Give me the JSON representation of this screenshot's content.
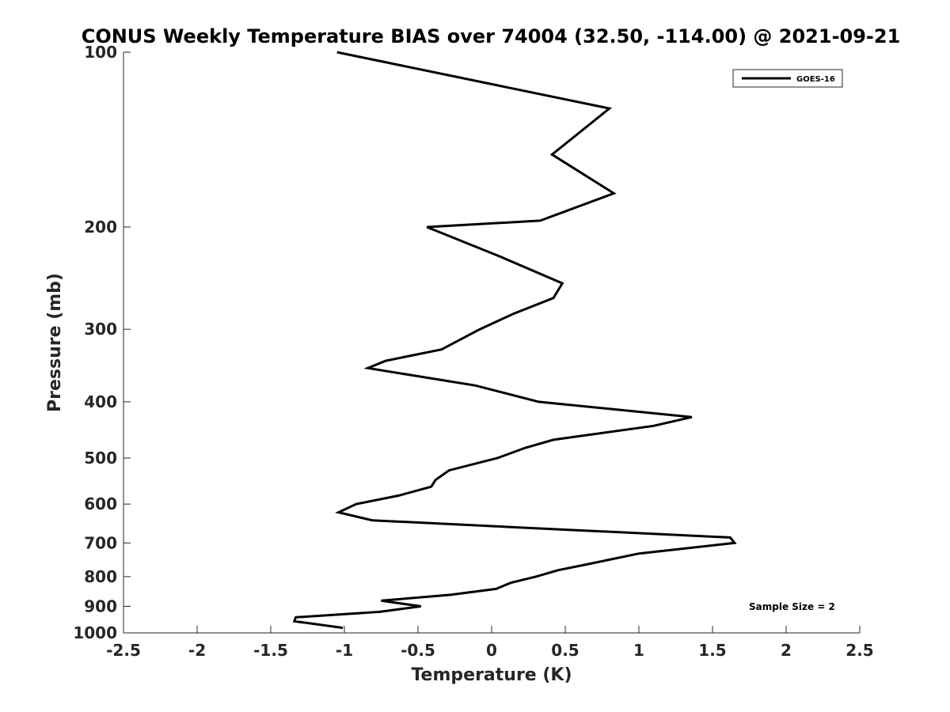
{
  "chart_data": {
    "type": "line",
    "title": "CONUS Weekly Temperature BIAS over 74004 (32.50, -114.00) @ 2021-09-21",
    "xlabel": "Temperature (K)",
    "ylabel": "Pressure (mb)",
    "xlim": [
      -2.5,
      2.5
    ],
    "ylim": [
      100,
      1000
    ],
    "y_scale": "log",
    "y_reversed": true,
    "grid": false,
    "x_ticks": [
      -2.5,
      -2,
      -1.5,
      -1,
      -0.5,
      0,
      0.5,
      1,
      1.5,
      2,
      2.5
    ],
    "x_tick_labels": [
      "-2.5",
      "-2",
      "-1.5",
      "-1",
      "-0.5",
      "0",
      "0.5",
      "1",
      "1.5",
      "2",
      "2.5"
    ],
    "y_ticks": [
      100,
      200,
      300,
      400,
      500,
      600,
      700,
      800,
      900,
      1000
    ],
    "y_tick_labels": [
      "100",
      "200",
      "300",
      "400",
      "500",
      "600",
      "700",
      "800",
      "900",
      "1000"
    ],
    "legend_position": "top-right",
    "annotation": "Sample Size = 2",
    "series": [
      {
        "name": "GOES-16",
        "color": "#000000",
        "points": [
          {
            "x": -1.05,
            "p": 100
          },
          {
            "x": 0.8,
            "p": 125
          },
          {
            "x": 0.41,
            "p": 150
          },
          {
            "x": 0.83,
            "p": 175
          },
          {
            "x": 0.33,
            "p": 195
          },
          {
            "x": -0.44,
            "p": 200
          },
          {
            "x": 0.06,
            "p": 225
          },
          {
            "x": 0.48,
            "p": 250
          },
          {
            "x": 0.42,
            "p": 265
          },
          {
            "x": 0.15,
            "p": 282
          },
          {
            "x": -0.08,
            "p": 300
          },
          {
            "x": -0.34,
            "p": 325
          },
          {
            "x": -0.72,
            "p": 340
          },
          {
            "x": -0.84,
            "p": 350
          },
          {
            "x": -0.11,
            "p": 375
          },
          {
            "x": 0.32,
            "p": 400
          },
          {
            "x": 1.36,
            "p": 425
          },
          {
            "x": 1.1,
            "p": 440
          },
          {
            "x": 0.42,
            "p": 465
          },
          {
            "x": 0.23,
            "p": 480
          },
          {
            "x": 0.04,
            "p": 500
          },
          {
            "x": -0.29,
            "p": 525
          },
          {
            "x": -0.38,
            "p": 545
          },
          {
            "x": -0.41,
            "p": 560
          },
          {
            "x": -0.63,
            "p": 580
          },
          {
            "x": -0.92,
            "p": 600
          },
          {
            "x": -1.04,
            "p": 620
          },
          {
            "x": -0.81,
            "p": 640
          },
          {
            "x": 0.27,
            "p": 660
          },
          {
            "x": 1.62,
            "p": 685
          },
          {
            "x": 1.65,
            "p": 700
          },
          {
            "x": 1.0,
            "p": 730
          },
          {
            "x": 0.67,
            "p": 760
          },
          {
            "x": 0.45,
            "p": 780
          },
          {
            "x": 0.3,
            "p": 800
          },
          {
            "x": 0.13,
            "p": 820
          },
          {
            "x": 0.03,
            "p": 840
          },
          {
            "x": -0.28,
            "p": 860
          },
          {
            "x": -0.75,
            "p": 880
          },
          {
            "x": -0.48,
            "p": 900
          },
          {
            "x": -0.76,
            "p": 920
          },
          {
            "x": -1.33,
            "p": 940
          },
          {
            "x": -1.34,
            "p": 955
          },
          {
            "x": -1.01,
            "p": 980
          }
        ]
      }
    ]
  }
}
